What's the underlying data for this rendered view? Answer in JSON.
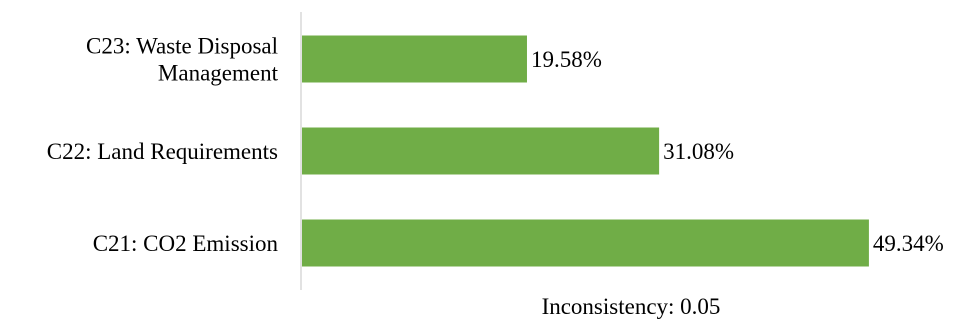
{
  "chart_data": {
    "type": "bar",
    "orientation": "horizontal",
    "categories": [
      [
        "C23: Waste Disposal",
        "Management"
      ],
      [
        "C22: Land Requirements"
      ],
      [
        "C21: CO2 Emission"
      ]
    ],
    "values": [
      19.58,
      31.08,
      49.34
    ],
    "data_labels": [
      "19.58%",
      "31.08%",
      "49.34%"
    ],
    "xlim": [
      0,
      50
    ],
    "grid": false,
    "legend": "none",
    "bar_color": "#70ad47",
    "axis_color": "#d9d9d9"
  },
  "note": "Inconsistency: 0.05"
}
